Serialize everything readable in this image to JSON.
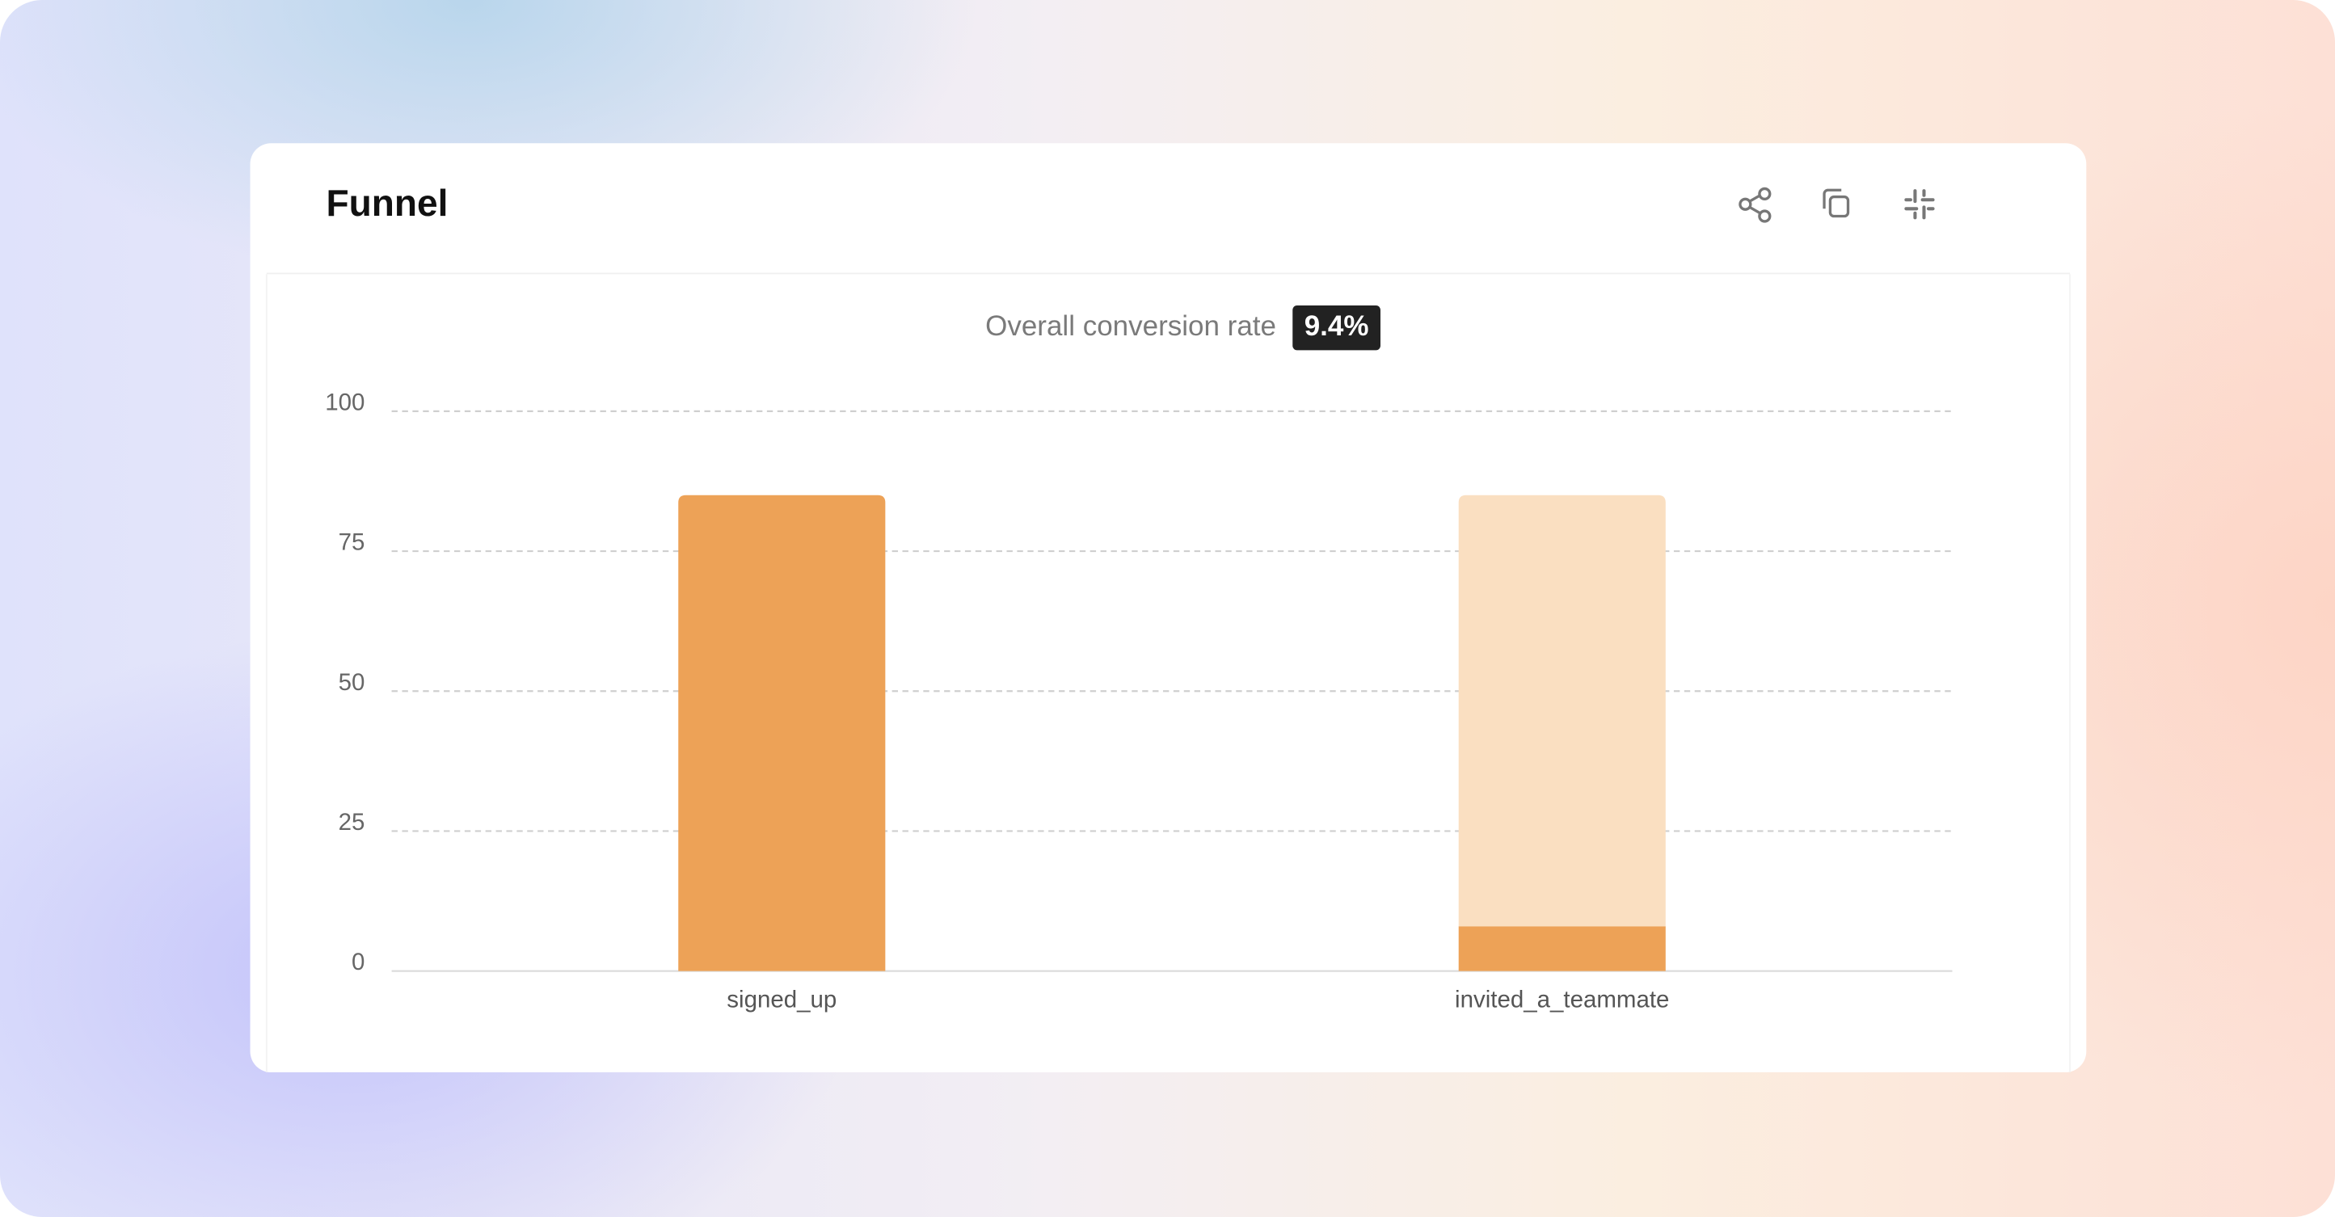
{
  "header": {
    "title": "Funnel"
  },
  "chart_data": {
    "type": "funnel",
    "subtitle": "Overall conversion rate",
    "conversion": {
      "values": [
        9.4
      ],
      "value_labels": [
        "9.4%"
      ]
    },
    "categories": [
      "signed_up",
      "invited_a_teammate"
    ],
    "series": [
      {
        "color": "#eda257",
        "values": [
          85,
          8
        ]
      },
      {
        "color": "#fadfc1",
        "values": [
          null,
          77
        ]
      }
    ],
    "ylim": [
      0,
      100
    ],
    "yticks": [
      0,
      25,
      50,
      75,
      100
    ],
    "grid": true
  }
}
